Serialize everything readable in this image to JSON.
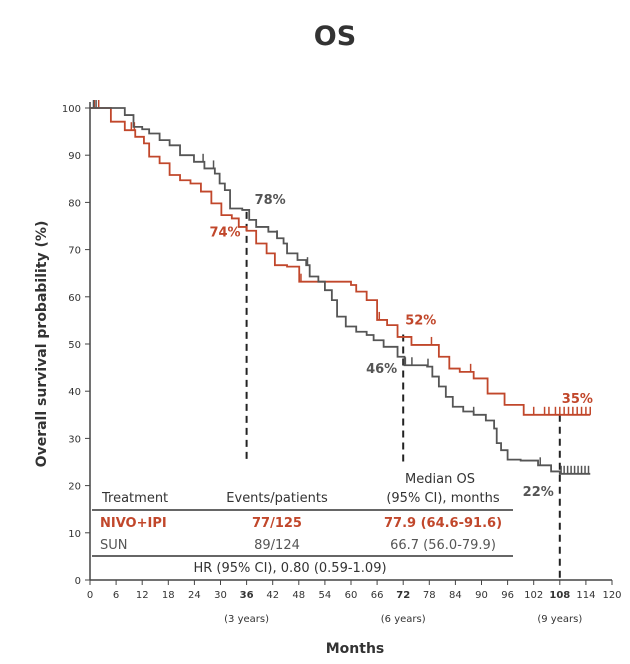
{
  "chart_data": {
    "type": "line",
    "subtype": "kaplan-meier",
    "title": "OS",
    "xlabel": "Months",
    "ylabel": "Overall survival probability (%)",
    "xlim": [
      0,
      120
    ],
    "ylim": [
      0,
      100
    ],
    "xticks": [
      0,
      6,
      12,
      18,
      24,
      30,
      36,
      42,
      48,
      54,
      60,
      66,
      72,
      78,
      84,
      90,
      96,
      102,
      108,
      114,
      120
    ],
    "yticks": [
      0,
      10,
      20,
      30,
      40,
      50,
      60,
      70,
      80,
      90,
      100
    ],
    "grid": false,
    "year_labels": [
      {
        "x": 36,
        "label": "(3 years)"
      },
      {
        "x": 72,
        "label": "(6 years)"
      },
      {
        "x": 108,
        "label": "(9 years)"
      }
    ],
    "reference_lines": [
      {
        "x": 36,
        "y_from": 25,
        "y_to": 78
      },
      {
        "x": 72,
        "y_from": 25,
        "y_to": 52
      },
      {
        "x": 108,
        "y_from": 0,
        "y_to": 35
      }
    ],
    "series": [
      {
        "name": "NIVO+IPI",
        "color": "#c1472b",
        "points": [
          [
            0,
            100
          ],
          [
            2.9,
            100
          ],
          [
            4.8,
            97.1
          ],
          [
            8,
            95.3
          ],
          [
            10.4,
            93.9
          ],
          [
            12.4,
            92.5
          ],
          [
            13.6,
            89.7
          ],
          [
            16,
            88.3
          ],
          [
            18.3,
            85.8
          ],
          [
            20.7,
            84.7
          ],
          [
            23.1,
            84
          ],
          [
            25.5,
            82.3
          ],
          [
            27.9,
            79.8
          ],
          [
            30.2,
            77.3
          ],
          [
            32.6,
            76.6
          ],
          [
            34.2,
            74.8
          ],
          [
            36,
            74
          ],
          [
            38.2,
            71.3
          ],
          [
            40.6,
            69.2
          ],
          [
            42.5,
            66.7
          ],
          [
            45.3,
            66.4
          ],
          [
            48.1,
            63.2
          ],
          [
            53.3,
            63.2
          ],
          [
            60,
            62.5
          ],
          [
            61.2,
            61.1
          ],
          [
            63.6,
            59.3
          ],
          [
            66,
            55.1
          ],
          [
            68.3,
            54
          ],
          [
            70.7,
            51.5
          ],
          [
            73.9,
            49.8
          ],
          [
            78.3,
            49.8
          ],
          [
            80.2,
            47.3
          ],
          [
            82.6,
            44.8
          ],
          [
            85,
            44.1
          ],
          [
            88.2,
            42.7
          ],
          [
            91.4,
            39.5
          ],
          [
            95.3,
            37.1
          ],
          [
            99.7,
            35
          ],
          [
            115,
            35
          ]
        ],
        "censored": [
          1,
          2,
          9.5,
          10.2,
          48.5,
          66.5,
          78.5,
          87.5,
          102,
          104.5,
          105.5,
          107,
          108,
          109,
          110,
          111,
          112,
          113,
          114,
          115
        ]
      },
      {
        "name": "SUN",
        "color": "#555555",
        "points": [
          [
            0,
            100
          ],
          [
            5.6,
            100
          ],
          [
            8,
            98.5
          ],
          [
            10,
            96
          ],
          [
            12,
            95.5
          ],
          [
            13.6,
            94.6
          ],
          [
            16,
            93.2
          ],
          [
            18.3,
            92.1
          ],
          [
            20.7,
            90
          ],
          [
            23.9,
            88.6
          ],
          [
            26.3,
            87.2
          ],
          [
            28.7,
            86.1
          ],
          [
            29.8,
            84
          ],
          [
            31,
            82.6
          ],
          [
            32.2,
            78.7
          ],
          [
            35,
            78.4
          ],
          [
            36.6,
            76.3
          ],
          [
            38.2,
            74.8
          ],
          [
            41,
            73.8
          ],
          [
            43,
            72.4
          ],
          [
            44.5,
            71.3
          ],
          [
            45.3,
            69.2
          ],
          [
            47.7,
            67.8
          ],
          [
            49.7,
            66.7
          ],
          [
            50.5,
            64.3
          ],
          [
            52.5,
            63.2
          ],
          [
            54,
            61.4
          ],
          [
            55.6,
            59.3
          ],
          [
            56.8,
            55.8
          ],
          [
            58.8,
            53.7
          ],
          [
            61.2,
            52.6
          ],
          [
            63.6,
            51.9
          ],
          [
            65.2,
            50.8
          ],
          [
            67.5,
            49.4
          ],
          [
            70.7,
            47.3
          ],
          [
            72.3,
            45.5
          ],
          [
            77.5,
            45.2
          ],
          [
            78.7,
            43.1
          ],
          [
            80.2,
            41
          ],
          [
            81.8,
            38.8
          ],
          [
            83.4,
            36.7
          ],
          [
            85.8,
            35.7
          ],
          [
            88.2,
            35
          ],
          [
            91,
            33.8
          ],
          [
            92.9,
            32.1
          ],
          [
            93.5,
            29
          ],
          [
            94.5,
            27.5
          ],
          [
            96,
            25.5
          ],
          [
            99,
            25.3
          ],
          [
            103,
            24.3
          ],
          [
            106,
            23
          ],
          [
            108,
            22.5
          ],
          [
            115,
            22.5
          ]
        ],
        "censored": [
          0.8,
          1.4,
          26,
          28.4,
          43,
          50,
          72.5,
          74,
          77.7,
          88.2,
          103.5,
          108.3,
          109,
          109.8,
          110.6,
          111.4,
          112.2,
          113,
          113.8,
          114.6
        ]
      }
    ],
    "annotations": [
      {
        "series": "SUN",
        "x": 36,
        "y": 78,
        "label": "78%"
      },
      {
        "series": "NIVO+IPI",
        "x": 36,
        "y": 74,
        "label": "74%"
      },
      {
        "series": "NIVO+IPI",
        "x": 72,
        "y": 52,
        "label": "52%"
      },
      {
        "series": "SUN",
        "x": 72,
        "y": 46,
        "label": "46%"
      },
      {
        "series": "NIVO+IPI",
        "x": 108,
        "y": 35,
        "label": "35%"
      },
      {
        "series": "SUN",
        "x": 108,
        "y": 22,
        "label": "22%"
      }
    ],
    "table": {
      "header_top": "Median OS",
      "headers": [
        "Treatment",
        "Events/patients",
        "(95% CI), months"
      ],
      "rows": [
        {
          "treatment": "NIVO+IPI",
          "events": "77/125",
          "median": "77.9 (64.6-91.6)",
          "color": "#c1472b"
        },
        {
          "treatment": "SUN",
          "events": "89/124",
          "median": "66.7 (56.0-79.9)",
          "color": "#555555"
        }
      ],
      "footer": "HR (95% CI), 0.80 (0.59-1.09)"
    }
  }
}
